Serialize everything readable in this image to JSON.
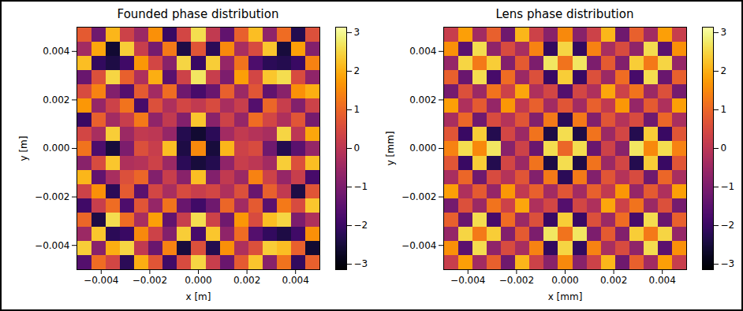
{
  "chart_data": [
    {
      "type": "heatmap",
      "title": "Founded phase distribution",
      "xlabel": "x [m]",
      "ylabel": "y [m]",
      "color": "inferno",
      "xlim": [
        -0.005,
        0.005
      ],
      "ylim": [
        -0.005,
        0.005
      ],
      "xticks": [
        {
          "value": -0.004,
          "label": "−0.004"
        },
        {
          "value": -0.002,
          "label": "−0.002"
        },
        {
          "value": 0,
          "label": "0.000"
        },
        {
          "value": 0.002,
          "label": "0.002"
        },
        {
          "value": 0.004,
          "label": "0.004"
        }
      ],
      "yticks": [
        {
          "value": -0.004,
          "label": "−0.004"
        },
        {
          "value": -0.002,
          "label": "−0.002"
        },
        {
          "value": 0,
          "label": "0.000"
        },
        {
          "value": 0.002,
          "label": "0.002"
        },
        {
          "value": 0.004,
          "label": "0.004"
        }
      ],
      "clim": [
        -3.14159,
        3.14159
      ],
      "cticks": [
        {
          "value": -3,
          "label": "−3"
        },
        {
          "value": -2,
          "label": "−2"
        },
        {
          "value": -1,
          "label": "−1"
        },
        0,
        1,
        2,
        3
      ],
      "cells": [
        [
          0.8,
          -1.2,
          2.1,
          0.3,
          -0.5,
          1.6,
          -2.0,
          0.4,
          2.6,
          0.1,
          -1.4,
          0.9,
          2.2,
          -0.7,
          1.1,
          -2.3,
          0.6
        ],
        [
          -0.4,
          1.9,
          -2.6,
          2.4,
          0.2,
          -1.1,
          1.3,
          -2.4,
          0.7,
          -2.2,
          1.5,
          -0.3,
          0.5,
          2.3,
          -2.5,
          1.8,
          -0.9
        ],
        [
          2.2,
          -2.1,
          -2.4,
          -1.9,
          1.7,
          0.4,
          -0.8,
          2.5,
          -2.0,
          2.4,
          -0.6,
          1.2,
          -1.7,
          -2.2,
          -2.3,
          -2.0,
          1.4
        ],
        [
          -1.3,
          0.6,
          2.5,
          0.9,
          -0.2,
          2.0,
          -1.5,
          0.3,
          2.7,
          0.2,
          -1.0,
          1.8,
          0.4,
          2.3,
          2.6,
          0.5,
          -0.7
        ],
        [
          0.5,
          1.4,
          -0.9,
          -1.6,
          0.8,
          -0.4,
          1.1,
          -1.2,
          -1.8,
          -1.3,
          0.9,
          -0.5,
          0.7,
          -1.4,
          -0.8,
          1.6,
          2.0
        ],
        [
          1.7,
          -0.6,
          0.3,
          1.2,
          -1.8,
          0.6,
          -0.2,
          0.4,
          0.1,
          0.5,
          -0.3,
          0.2,
          -1.6,
          1.0,
          0.2,
          -0.9,
          0.3
        ],
        [
          -2.0,
          0.9,
          -0.4,
          0.2,
          1.3,
          -0.7,
          0.1,
          -0.9,
          2.3,
          -0.8,
          0.3,
          -0.6,
          1.1,
          0.4,
          -0.2,
          0.7,
          -1.1
        ],
        [
          0.4,
          -0.3,
          2.4,
          -0.5,
          0.1,
          0.0,
          -0.6,
          -2.3,
          -2.6,
          -2.2,
          -0.4,
          0.1,
          -0.1,
          -0.3,
          2.5,
          0.0,
          1.9
        ],
        [
          1.2,
          -1.7,
          -2.5,
          -1.0,
          0.6,
          0.2,
          2.2,
          -2.4,
          1.5,
          -2.5,
          2.1,
          0.3,
          0.5,
          -1.2,
          -2.3,
          -1.5,
          -0.6
        ],
        [
          -0.8,
          0.5,
          2.3,
          -0.2,
          -0.1,
          0.3,
          -0.5,
          -2.2,
          -2.5,
          -2.3,
          -0.7,
          0.2,
          0.0,
          -0.4,
          2.4,
          0.6,
          2.2
        ],
        [
          2.1,
          -1.4,
          -0.3,
          0.6,
          1.0,
          -0.9,
          0.2,
          -0.8,
          2.2,
          -0.9,
          0.1,
          -0.5,
          1.4,
          0.3,
          -0.6,
          0.2,
          -1.8
        ],
        [
          0.3,
          1.6,
          -2.2,
          0.8,
          -1.5,
          0.4,
          -0.3,
          0.5,
          0.2,
          0.4,
          -0.2,
          0.6,
          -1.3,
          0.9,
          0.1,
          -2.4,
          0.7
        ],
        [
          -1.9,
          0.2,
          1.1,
          -1.7,
          0.7,
          -0.6,
          1.2,
          -1.3,
          -1.9,
          -1.2,
          1.0,
          -0.4,
          0.8,
          -1.5,
          1.3,
          0.5,
          2.3
        ],
        [
          1.0,
          -2.4,
          2.6,
          1.1,
          -0.3,
          1.8,
          -1.4,
          0.2,
          2.6,
          0.3,
          -1.2,
          1.7,
          0.5,
          2.2,
          2.5,
          -1.0,
          -0.2
        ],
        [
          -0.5,
          2.3,
          -2.2,
          -2.0,
          1.5,
          0.3,
          -0.9,
          2.4,
          -1.8,
          2.3,
          -0.7,
          1.1,
          -1.6,
          -2.1,
          -2.4,
          -1.9,
          1.6
        ],
        [
          2.4,
          -0.8,
          2.0,
          2.5,
          0.1,
          -1.3,
          1.4,
          -2.5,
          0.6,
          -2.3,
          1.6,
          -0.2,
          0.6,
          2.4,
          2.2,
          0.9,
          -2.6
        ],
        [
          -1.6,
          1.1,
          0.4,
          -2.2,
          2.0,
          0.7,
          -1.9,
          0.5,
          2.5,
          0.2,
          -1.3,
          0.8,
          2.3,
          -0.8,
          1.2,
          -2.1,
          0.9
        ]
      ]
    },
    {
      "type": "heatmap",
      "title": "Lens phase distribution",
      "xlabel": "x [mm]",
      "ylabel": "y [mm]",
      "color": "inferno",
      "xlim": [
        -0.005,
        0.005
      ],
      "ylim": [
        -0.005,
        0.005
      ],
      "xticks": [
        {
          "value": -0.004,
          "label": "−0.004"
        },
        {
          "value": -0.002,
          "label": "−0.002"
        },
        {
          "value": 0,
          "label": "0.000"
        },
        {
          "value": 0.002,
          "label": "0.002"
        },
        {
          "value": 0.004,
          "label": "0.004"
        }
      ],
      "yticks": [
        {
          "value": -0.004,
          "label": "−0.004"
        },
        {
          "value": -0.002,
          "label": "−0.002"
        },
        {
          "value": 0,
          "label": "0.000"
        },
        {
          "value": 0.002,
          "label": "0.002"
        },
        {
          "value": 0.004,
          "label": "0.004"
        }
      ],
      "clim": [
        -3.14159,
        3.14159
      ],
      "cticks": [
        {
          "value": -3,
          "label": "−3"
        },
        {
          "value": -2,
          "label": "−2"
        },
        {
          "value": -1,
          "label": "−1"
        },
        0,
        1,
        2,
        3
      ],
      "cells": [
        [
          0.2,
          1.8,
          -0.4,
          0.9,
          -1.2,
          2.1,
          0.3,
          -0.8,
          1.5,
          -0.8,
          0.3,
          2.1,
          -1.2,
          0.9,
          -0.4,
          1.8,
          0.2
        ],
        [
          1.6,
          -1.5,
          2.6,
          -0.7,
          0.5,
          -0.3,
          1.4,
          -2.1,
          2.5,
          -2.1,
          1.4,
          -0.3,
          0.5,
          -0.7,
          2.6,
          -1.5,
          1.6
        ],
        [
          -0.6,
          2.5,
          1.3,
          2.4,
          -0.9,
          0.8,
          -1.0,
          2.7,
          1.2,
          2.7,
          -1.0,
          0.8,
          -0.9,
          2.4,
          1.3,
          2.5,
          -0.6
        ],
        [
          0.9,
          -1.3,
          2.6,
          -1.8,
          1.1,
          -0.5,
          0.6,
          -2.0,
          2.4,
          -2.0,
          0.6,
          -0.5,
          1.1,
          -1.8,
          2.6,
          -1.3,
          0.9
        ],
        [
          -1.1,
          0.6,
          -0.5,
          1.2,
          0.3,
          1.9,
          -0.2,
          0.4,
          -1.6,
          0.4,
          -0.2,
          1.9,
          0.3,
          1.2,
          -0.5,
          0.6,
          -1.1
        ],
        [
          1.8,
          -0.2,
          0.8,
          -0.6,
          1.7,
          0.1,
          0.9,
          -0.4,
          0.7,
          -0.4,
          0.9,
          0.1,
          1.7,
          -0.6,
          0.8,
          -0.2,
          1.8
        ],
        [
          -0.3,
          1.0,
          -1.2,
          0.5,
          -0.1,
          0.7,
          -0.9,
          1.3,
          -2.2,
          1.3,
          -0.9,
          0.7,
          -0.1,
          0.5,
          -1.2,
          1.0,
          -0.3
        ],
        [
          0.7,
          -2.0,
          2.4,
          -2.3,
          0.4,
          -0.5,
          1.2,
          -2.4,
          2.6,
          -2.4,
          1.2,
          -0.5,
          0.4,
          -2.3,
          2.4,
          -2.0,
          0.7
        ],
        [
          1.4,
          2.6,
          1.5,
          2.7,
          -0.8,
          0.3,
          -1.3,
          2.6,
          1.0,
          2.6,
          -1.3,
          0.3,
          -0.8,
          2.7,
          1.5,
          2.6,
          1.4
        ],
        [
          0.7,
          -2.0,
          2.4,
          -2.3,
          0.4,
          -0.5,
          1.2,
          -2.4,
          2.6,
          -2.4,
          1.2,
          -0.5,
          0.4,
          -2.3,
          2.4,
          -2.0,
          0.7
        ],
        [
          -0.3,
          1.0,
          -1.2,
          0.5,
          -0.1,
          0.7,
          -0.9,
          1.3,
          -2.2,
          1.3,
          -0.9,
          0.7,
          -0.1,
          0.5,
          -1.2,
          1.0,
          -0.3
        ],
        [
          1.8,
          -0.2,
          0.8,
          -0.6,
          1.7,
          0.1,
          0.9,
          -0.4,
          0.7,
          -0.4,
          0.9,
          0.1,
          1.7,
          -0.6,
          0.8,
          -0.2,
          1.8
        ],
        [
          -1.1,
          0.6,
          -0.5,
          1.2,
          0.3,
          1.9,
          -0.2,
          0.4,
          -1.6,
          0.4,
          -0.2,
          1.9,
          0.3,
          1.2,
          -0.5,
          0.6,
          -1.1
        ],
        [
          0.9,
          -1.3,
          2.6,
          -1.8,
          1.1,
          -0.5,
          0.6,
          -2.0,
          2.4,
          -2.0,
          0.6,
          -0.5,
          1.1,
          -1.8,
          2.6,
          -1.3,
          0.9
        ],
        [
          -0.6,
          2.5,
          1.3,
          2.4,
          -0.9,
          0.8,
          -1.0,
          2.7,
          1.2,
          2.7,
          -1.0,
          0.8,
          -0.9,
          2.4,
          1.3,
          2.5,
          -0.6
        ],
        [
          1.6,
          -1.5,
          2.6,
          -0.7,
          0.5,
          -0.3,
          1.4,
          -2.1,
          2.5,
          -2.1,
          1.4,
          -0.3,
          0.5,
          -0.7,
          2.6,
          -1.5,
          1.6
        ],
        [
          0.2,
          1.8,
          -0.4,
          0.9,
          -1.2,
          2.1,
          0.3,
          -0.8,
          1.5,
          -0.8,
          0.3,
          2.1,
          -1.2,
          0.9,
          -0.4,
          1.8,
          0.2
        ]
      ]
    }
  ]
}
